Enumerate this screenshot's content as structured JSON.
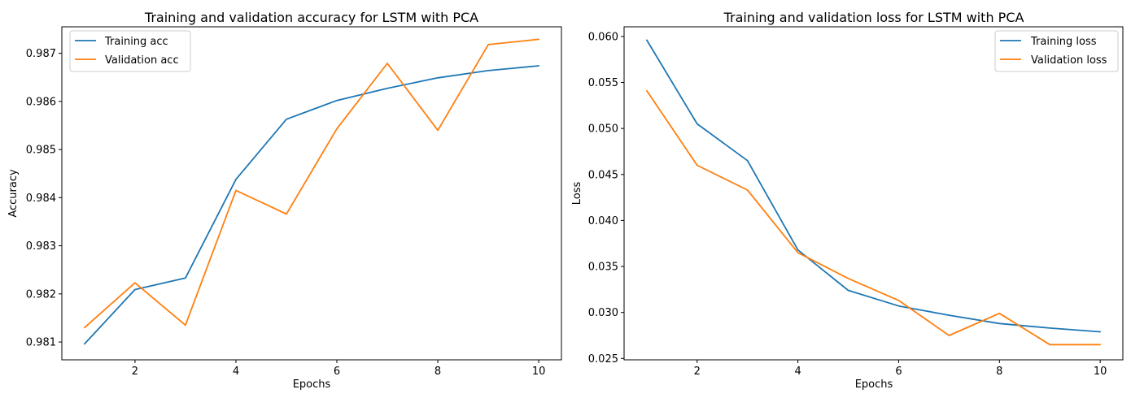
{
  "colors": {
    "training": "#1f77b4",
    "validation": "#ff7f0e"
  },
  "chart_data": [
    {
      "type": "line",
      "title": "Training and validation accuracy for LSTM with PCA",
      "xlabel": "Epochs",
      "ylabel": "Accuracy",
      "xlim": [
        0.55,
        10.45
      ],
      "ylim": [
        0.98063,
        0.98755
      ],
      "x_ticks": [
        2,
        4,
        6,
        8,
        10
      ],
      "x_tick_labels": [
        "2",
        "4",
        "6",
        "8",
        "10"
      ],
      "y_ticks": [
        0.981,
        0.982,
        0.983,
        0.984,
        0.985,
        0.986,
        0.987
      ],
      "y_tick_labels": [
        "0.981",
        "0.982",
        "0.983",
        "0.984",
        "0.985",
        "0.986",
        "0.987"
      ],
      "legend_position": "top-left",
      "grid": false,
      "x": [
        1,
        2,
        3,
        4,
        5,
        6,
        7,
        8,
        9,
        10
      ],
      "series": [
        {
          "name": "Training acc",
          "color": "#1f77b4",
          "values": [
            0.98096,
            0.98209,
            0.98233,
            0.98438,
            0.98563,
            0.98602,
            0.98627,
            0.98649,
            0.98664,
            0.98674
          ]
        },
        {
          "name": "Validation acc",
          "color": "#ff7f0e",
          "values": [
            0.9813,
            0.98223,
            0.98135,
            0.98415,
            0.98366,
            0.98543,
            0.98679,
            0.9854,
            0.98718,
            0.98729
          ]
        }
      ]
    },
    {
      "type": "line",
      "title": "Training and validation loss for LSTM with PCA",
      "xlabel": "Epochs",
      "ylabel": "Loss",
      "xlim": [
        0.55,
        10.45
      ],
      "ylim": [
        0.02485,
        0.06105
      ],
      "x_ticks": [
        2,
        4,
        6,
        8,
        10
      ],
      "x_tick_labels": [
        "2",
        "4",
        "6",
        "8",
        "10"
      ],
      "y_ticks": [
        0.025,
        0.03,
        0.035,
        0.04,
        0.045,
        0.05,
        0.055,
        0.06
      ],
      "y_tick_labels": [
        "0.025",
        "0.030",
        "0.035",
        "0.040",
        "0.045",
        "0.050",
        "0.055",
        "0.060"
      ],
      "legend_position": "top-right",
      "grid": false,
      "x": [
        1,
        2,
        3,
        4,
        5,
        6,
        7,
        8,
        9,
        10
      ],
      "series": [
        {
          "name": "Training loss",
          "color": "#1f77b4",
          "values": [
            0.0596,
            0.0505,
            0.0465,
            0.0368,
            0.0324,
            0.0307,
            0.0297,
            0.0288,
            0.0283,
            0.0279
          ]
        },
        {
          "name": "Validation loss",
          "color": "#ff7f0e",
          "values": [
            0.0541,
            0.046,
            0.0433,
            0.0365,
            0.0337,
            0.0313,
            0.0275,
            0.0299,
            0.0265,
            0.0265
          ]
        }
      ]
    }
  ]
}
